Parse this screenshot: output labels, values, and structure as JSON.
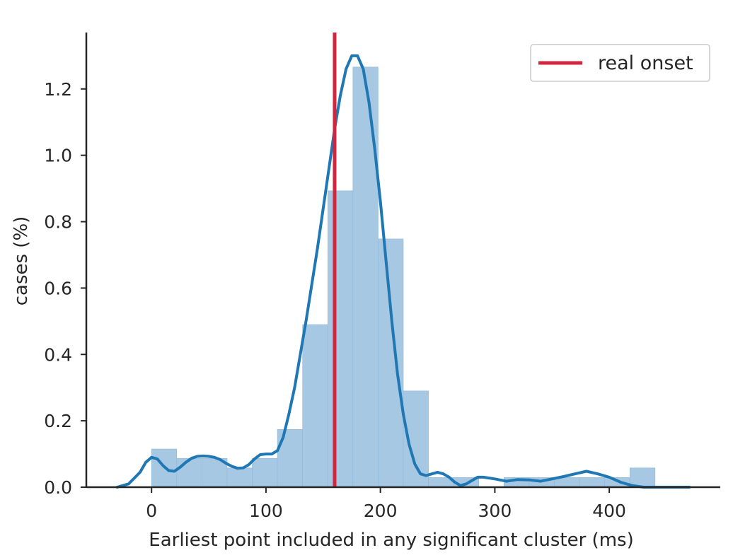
{
  "chart_data": {
    "type": "bar",
    "xlabel": "Earliest point included in any significant cluster (ms)",
    "ylabel": "cases (%)",
    "xlim": [
      -57,
      497
    ],
    "ylim": [
      0,
      1.37
    ],
    "x_ticks": [
      0,
      100,
      200,
      300,
      400
    ],
    "y_ticks": [
      0.0,
      0.2,
      0.4,
      0.6,
      0.8,
      1.0,
      1.2
    ],
    "x_tick_labels": [
      "0",
      "100",
      "200",
      "300",
      "400"
    ],
    "y_tick_labels": [
      "0.0",
      "0.2",
      "0.4",
      "0.6",
      "0.8",
      "1.0",
      "1.2"
    ],
    "grid": false,
    "legend": {
      "position": "top-right",
      "entries": [
        "real onset"
      ]
    },
    "histogram": {
      "bin_edges": [
        0,
        22,
        44,
        66,
        88,
        110,
        132,
        154,
        176,
        198,
        220,
        242,
        264,
        286,
        308,
        330,
        352,
        374,
        396,
        418,
        440
      ],
      "values": [
        0.115,
        0.087,
        0.087,
        0.058,
        0.087,
        0.174,
        0.49,
        0.893,
        1.266,
        0.748,
        0.29,
        0.029,
        0.029,
        0.0,
        0.029,
        0.029,
        0.029,
        0.029,
        0.029,
        0.058
      ],
      "color": "#a6c8e3"
    },
    "kde": {
      "x": [
        -30,
        -20,
        -10,
        -5,
        0,
        5,
        10,
        15,
        20,
        25,
        30,
        35,
        40,
        45,
        50,
        55,
        60,
        65,
        70,
        75,
        80,
        85,
        90,
        95,
        100,
        105,
        110,
        115,
        120,
        125,
        130,
        135,
        140,
        145,
        150,
        155,
        160,
        165,
        170,
        175,
        180,
        185,
        190,
        195,
        200,
        205,
        210,
        215,
        220,
        225,
        230,
        235,
        240,
        245,
        250,
        255,
        260,
        265,
        270,
        275,
        280,
        285,
        290,
        300,
        310,
        320,
        330,
        340,
        350,
        360,
        370,
        380,
        390,
        400,
        410,
        420,
        430,
        440,
        450,
        460,
        470
      ],
      "y": [
        0.0,
        0.01,
        0.045,
        0.075,
        0.09,
        0.085,
        0.065,
        0.05,
        0.048,
        0.06,
        0.075,
        0.087,
        0.093,
        0.094,
        0.093,
        0.09,
        0.083,
        0.072,
        0.063,
        0.057,
        0.058,
        0.068,
        0.085,
        0.098,
        0.1,
        0.1,
        0.11,
        0.15,
        0.22,
        0.3,
        0.4,
        0.5,
        0.61,
        0.72,
        0.84,
        0.96,
        1.08,
        1.18,
        1.26,
        1.3,
        1.3,
        1.26,
        1.16,
        1.02,
        0.86,
        0.68,
        0.5,
        0.34,
        0.22,
        0.13,
        0.07,
        0.04,
        0.035,
        0.04,
        0.045,
        0.04,
        0.03,
        0.015,
        0.005,
        0.01,
        0.02,
        0.03,
        0.03,
        0.025,
        0.018,
        0.023,
        0.022,
        0.018,
        0.025,
        0.032,
        0.04,
        0.048,
        0.04,
        0.03,
        0.015,
        0.005,
        0.0,
        0.0,
        0.0,
        0.0,
        0.0
      ],
      "color": "#1f77b4"
    },
    "vline": {
      "x": 160,
      "label": "real onset",
      "color": "#d1273e"
    }
  }
}
